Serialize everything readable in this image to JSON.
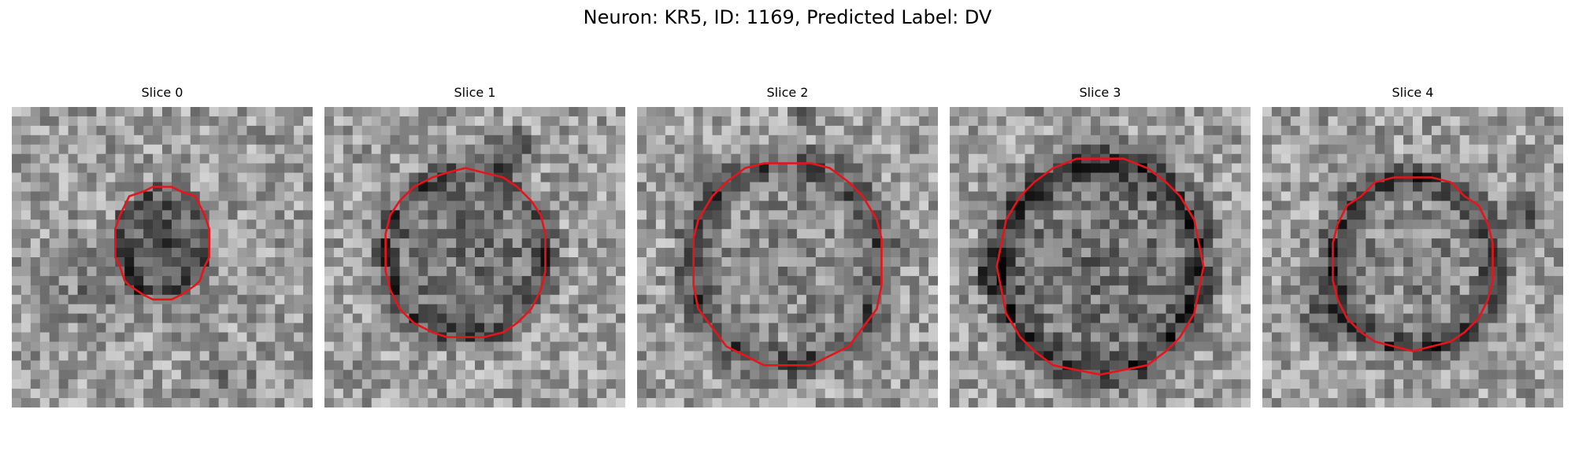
{
  "figure": {
    "title": "Neuron: KR5, ID: 1169, Predicted Label: DV"
  },
  "contour_color": "#e8141c",
  "slices": [
    {
      "title": "Slice 0"
    },
    {
      "title": "Slice 1"
    },
    {
      "title": "Slice 2"
    },
    {
      "title": "Slice 3"
    },
    {
      "title": "Slice 4"
    }
  ]
}
